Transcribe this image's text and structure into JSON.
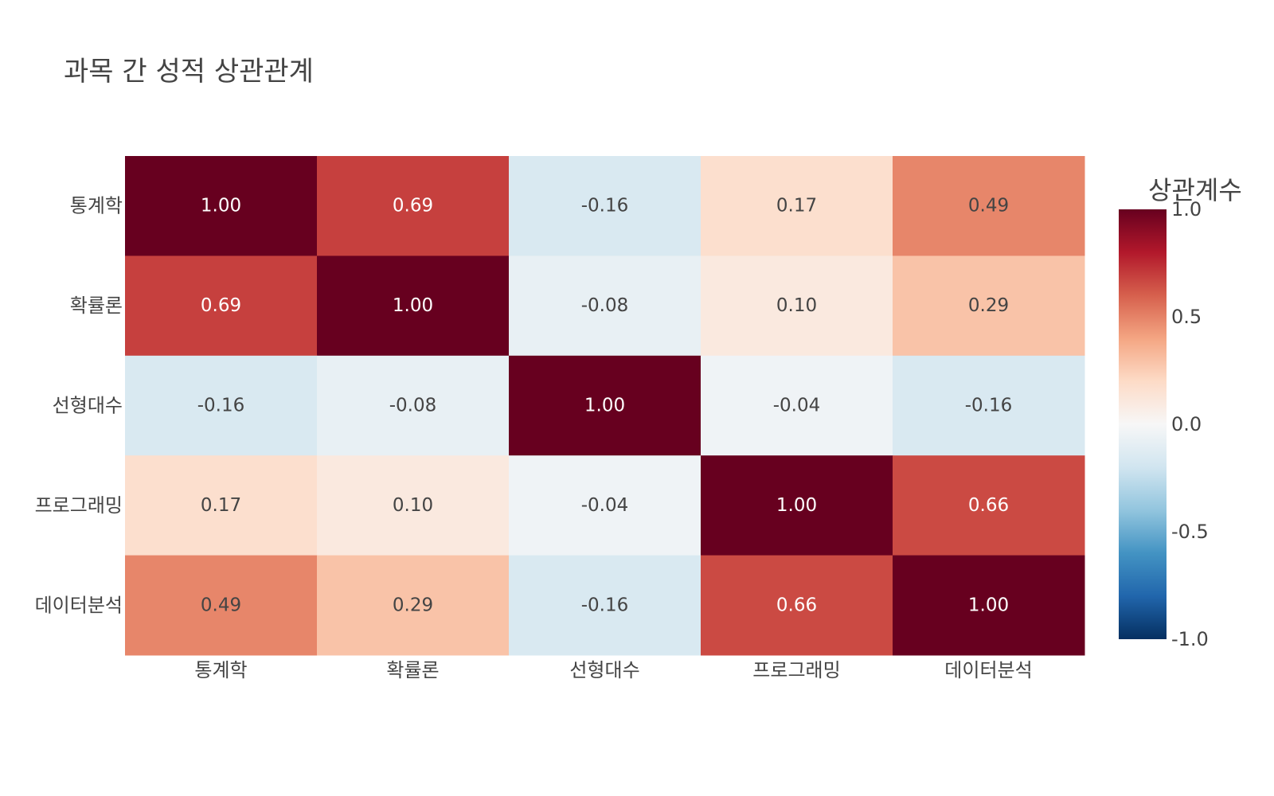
{
  "chart_data": {
    "type": "heatmap",
    "title": "과목 간 성적 상관관계",
    "x_categories": [
      "통계학",
      "확률론",
      "선형대수",
      "프로그래밍",
      "데이터분석"
    ],
    "y_categories": [
      "통계학",
      "확률론",
      "선형대수",
      "프로그래밍",
      "데이터분석"
    ],
    "z": [
      [
        1.0,
        0.69,
        -0.16,
        0.17,
        0.49
      ],
      [
        0.69,
        1.0,
        -0.08,
        0.1,
        0.29
      ],
      [
        -0.16,
        -0.08,
        1.0,
        -0.04,
        -0.16
      ],
      [
        0.17,
        0.1,
        -0.04,
        1.0,
        0.66
      ],
      [
        0.49,
        0.29,
        -0.16,
        0.66,
        1.0
      ]
    ],
    "value_format": "0.00",
    "colorscale": "RdBu (reversed)",
    "zrange": [
      -1.0,
      1.0
    ],
    "colorbar": {
      "title": "상관계수",
      "ticks": [
        "1.0",
        "0.5",
        "0.0",
        "-0.5",
        "-1.0"
      ],
      "tick_values": [
        1.0,
        0.5,
        0.0,
        -0.5,
        -1.0
      ]
    },
    "xlabel": "",
    "ylabel": "",
    "grid": false,
    "legend": "colorbar-right"
  }
}
